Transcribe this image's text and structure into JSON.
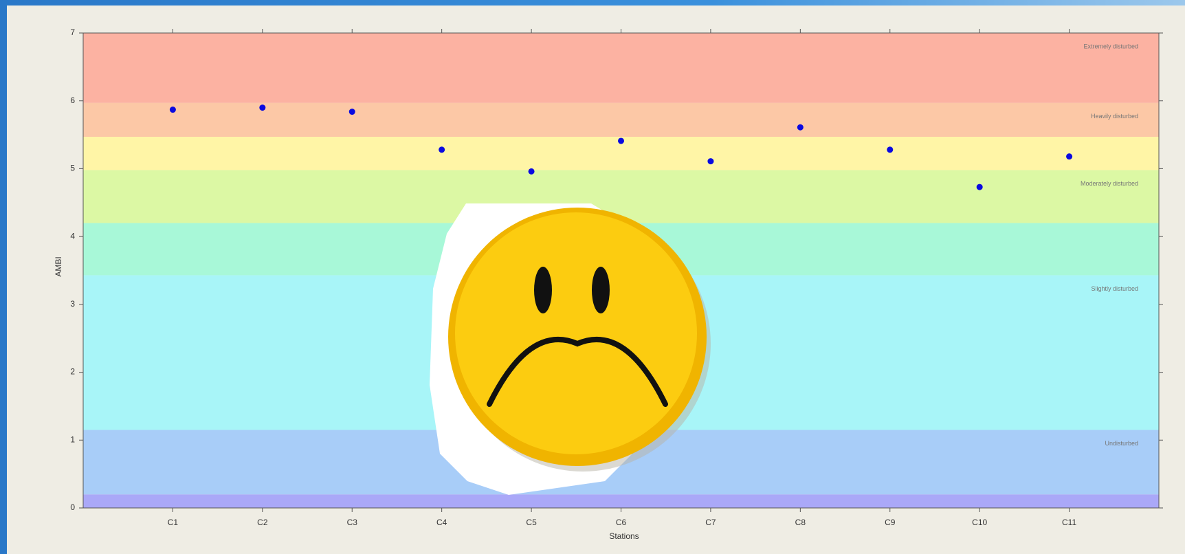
{
  "chart_data": {
    "type": "scatter",
    "x_label": "Stations",
    "y_label": "AMBI",
    "categories": [
      "C1",
      "C2",
      "C3",
      "C4",
      "C5",
      "C6",
      "C7",
      "C8",
      "C9",
      "C10",
      "C11"
    ],
    "values": [
      5.87,
      5.9,
      5.84,
      5.28,
      4.96,
      5.41,
      5.11,
      5.61,
      5.28,
      4.73,
      5.18
    ],
    "color": "#0a0ae0",
    "ylim": [
      0,
      7
    ],
    "yticks": [
      0,
      1,
      2,
      3,
      4,
      5,
      6,
      7
    ],
    "bands": [
      {
        "from": 0,
        "to": 0.2,
        "color": "#aaa8f8"
      },
      {
        "from": 0.2,
        "to": 1.15,
        "color": "#a8cdf8",
        "label": "Undisturbed"
      },
      {
        "from": 1.15,
        "to": 3.43,
        "color": "#a8f5f8",
        "label": "Slightly disturbed"
      },
      {
        "from": 3.43,
        "to": 4.2,
        "color": "#a8f8d8"
      },
      {
        "from": 4.2,
        "to": 4.98,
        "color": "#dcf8a4",
        "label": "Moderately disturbed"
      },
      {
        "from": 4.98,
        "to": 5.47,
        "color": "#fff5a6"
      },
      {
        "from": 5.47,
        "to": 5.97,
        "color": "#fcc8a6",
        "label": "Heavily disturbed"
      },
      {
        "from": 5.97,
        "to": 7,
        "color": "#fcb2a2",
        "label": "Extremely disturbed"
      }
    ]
  }
}
